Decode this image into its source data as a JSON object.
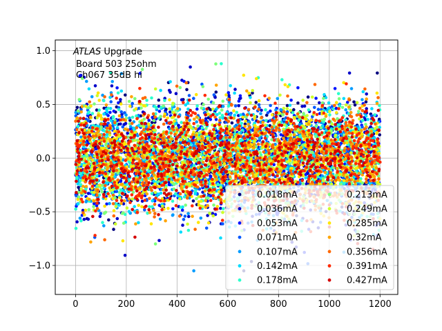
{
  "chart_data": {
    "type": "scatter",
    "title": "",
    "xlabel": "",
    "ylabel": "",
    "xlim": [
      -80,
      1270
    ],
    "ylim": [
      -1.27,
      1.1
    ],
    "x_ticks": [
      0,
      200,
      400,
      600,
      800,
      1000,
      1200
    ],
    "y_ticks": [
      -1.0,
      -0.5,
      0.0,
      0.5,
      1.0
    ],
    "x_tick_labels": [
      "0",
      "200",
      "400",
      "600",
      "800",
      "1000",
      "1200"
    ],
    "y_tick_labels": [
      "−1.0",
      "−0.5",
      "0.0",
      "0.5",
      "1.0"
    ],
    "grid": true,
    "annotation": {
      "italic": "ATLAS",
      "rest": " Upgrade",
      "line2": "Board 503 25ohm",
      "line3": "Ch067 35dB hi"
    },
    "legend": {
      "placement": "lower-right",
      "columns": 2
    },
    "series": [
      {
        "name": "0.018mA",
        "color": "#00007f",
        "x_range": [
          0,
          1200
        ],
        "mean": 0.0,
        "spread": 0.27
      },
      {
        "name": "0.036mA",
        "color": "#0000c8",
        "x_range": [
          0,
          1200
        ],
        "mean": 0.0,
        "spread": 0.27
      },
      {
        "name": "0.053mA",
        "color": "#0014ff",
        "x_range": [
          0,
          1200
        ],
        "mean": 0.0,
        "spread": 0.27
      },
      {
        "name": "0.071mA",
        "color": "#0058ff",
        "x_range": [
          0,
          1200
        ],
        "mean": 0.0,
        "spread": 0.27
      },
      {
        "name": "0.107mA",
        "color": "#009cff",
        "x_range": [
          0,
          1200
        ],
        "mean": 0.0,
        "spread": 0.27
      },
      {
        "name": "0.142mA",
        "color": "#00dcfe",
        "x_range": [
          0,
          1200
        ],
        "mean": 0.0,
        "spread": 0.27
      },
      {
        "name": "0.178mA",
        "color": "#2affcd",
        "x_range": [
          0,
          1200
        ],
        "mean": 0.0,
        "spread": 0.27
      },
      {
        "name": "0.213mA",
        "color": "#7dff7a",
        "x_range": [
          0,
          1200
        ],
        "mean": 0.0,
        "spread": 0.26
      },
      {
        "name": "0.249mA",
        "color": "#cdff2a",
        "x_range": [
          0,
          1200
        ],
        "mean": 0.0,
        "spread": 0.26
      },
      {
        "name": "0.285mA",
        "color": "#ffe600",
        "x_range": [
          0,
          1200
        ],
        "mean": 0.0,
        "spread": 0.25
      },
      {
        "name": "0.32mA",
        "color": "#ffa400",
        "x_range": [
          0,
          1200
        ],
        "mean": 0.0,
        "spread": 0.25
      },
      {
        "name": "0.356mA",
        "color": "#ff6800",
        "x_range": [
          0,
          1200
        ],
        "mean": 0.0,
        "spread": 0.24
      },
      {
        "name": "0.391mA",
        "color": "#ff2900",
        "x_range": [
          0,
          1200
        ],
        "mean": 0.0,
        "spread": 0.24
      },
      {
        "name": "0.427mA",
        "color": "#d40000",
        "x_range": [
          0,
          1200
        ],
        "mean": 0.0,
        "spread": 0.23
      }
    ]
  }
}
